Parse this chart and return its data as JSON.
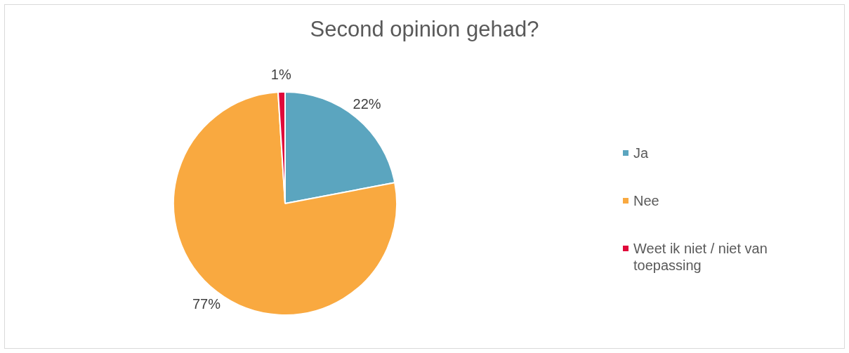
{
  "chart_data": {
    "type": "pie",
    "title": "Second opinion gehad?",
    "categories": [
      "Ja",
      "Nee",
      "Weet ik niet / niet van toepassing"
    ],
    "values": [
      22,
      77,
      1
    ],
    "colors": [
      "#5ba5bf",
      "#f9a940",
      "#e0093a"
    ],
    "value_labels": [
      "22%",
      "77%",
      "1%"
    ],
    "legend": "right"
  }
}
